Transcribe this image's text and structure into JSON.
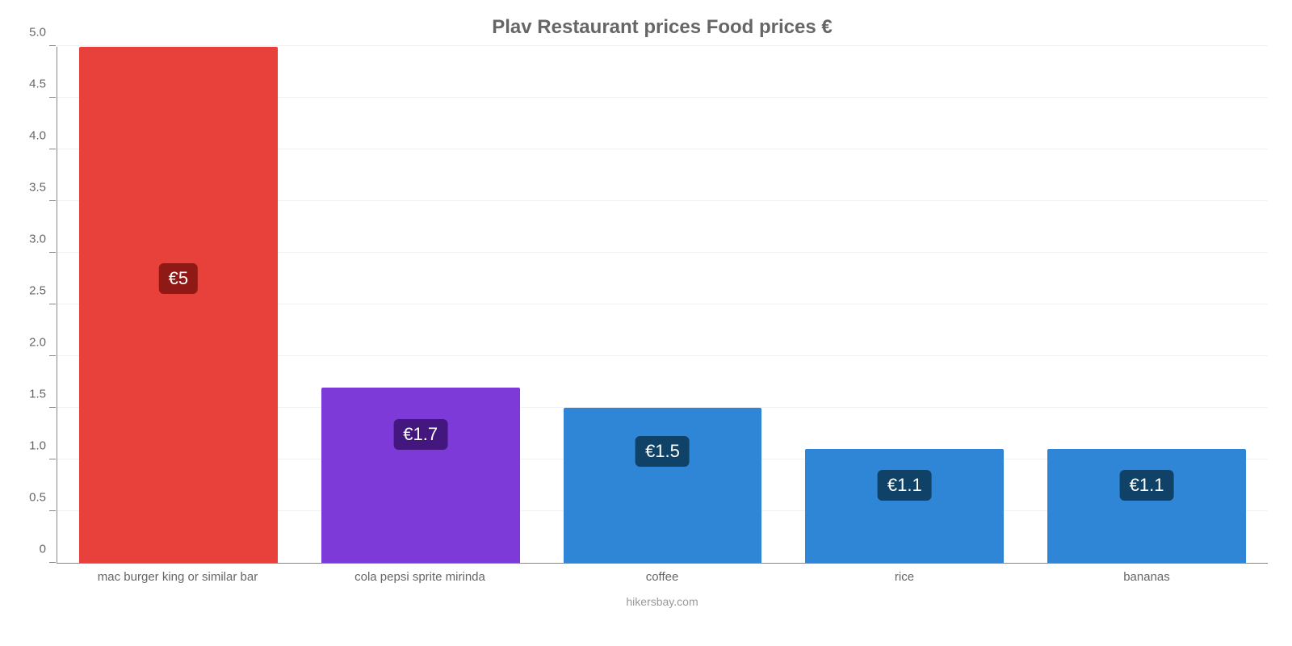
{
  "chart": {
    "type": "bar",
    "title": "Plav Restaurant prices Food prices €",
    "title_color": "#666666",
    "title_fontsize": 24,
    "attribution": "hikersbay.com",
    "attribution_color": "#999999",
    "background_color": "#ffffff",
    "grid_color": "#f2f2f2",
    "axis_color": "#888888",
    "tick_label_color": "#666666",
    "tick_label_fontsize": 15,
    "xlabel_fontsize": 15,
    "bar_width_ratio": 0.82,
    "ylim": [
      0,
      5.0
    ],
    "yticks": [
      0,
      0.5,
      1.0,
      1.5,
      2.0,
      2.5,
      3.0,
      3.5,
      4.0,
      4.5,
      5.0
    ],
    "ytick_labels": [
      "0",
      "0.5",
      "1.0",
      "1.5",
      "2.0",
      "2.5",
      "3.0",
      "3.5",
      "4.0",
      "4.5",
      "5.0"
    ],
    "value_label_fontsize": 22,
    "value_label_text_color": "#ffffff",
    "value_label_radius": 6,
    "categories": [
      "mac burger king or similar bar",
      "cola pepsi sprite mirinda",
      "coffee",
      "rice",
      "bananas"
    ],
    "values": [
      5.0,
      1.7,
      1.5,
      1.1,
      1.1
    ],
    "value_labels": [
      "€5",
      "€1.7",
      "€1.5",
      "€1.1",
      "€1.1"
    ],
    "bar_colors": [
      "#e8403a",
      "#7e3ad9",
      "#2f86d6",
      "#2f86d6",
      "#2f86d6"
    ],
    "value_label_bg_colors": [
      "#8e1915",
      "#44177f",
      "#0f4266",
      "#0f4266",
      "#0f4266"
    ]
  }
}
